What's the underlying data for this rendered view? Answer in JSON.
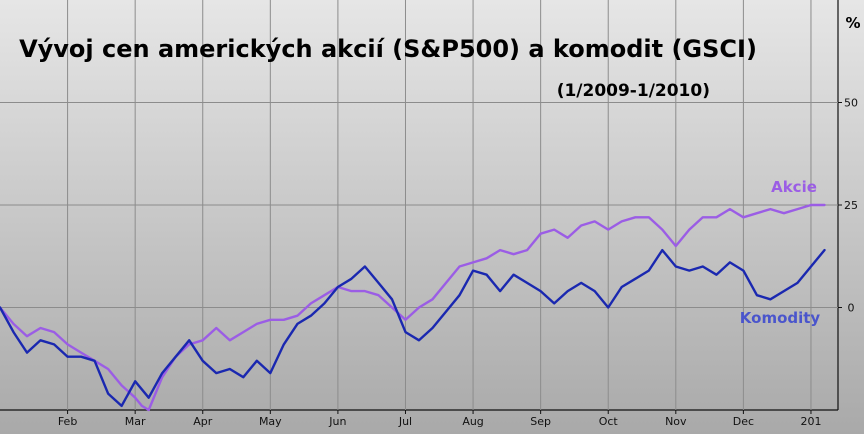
{
  "chart_data": {
    "type": "line",
    "title": "Vývoj cen amerických akcií (S&P500) a komodit (GSCI)",
    "subtitle": "(1/2009-1/2010)",
    "y_unit_label": "%",
    "ylim": [
      -25,
      75
    ],
    "xlim": [
      1,
      13.4
    ],
    "y_ticks": [
      {
        "value": 50,
        "label": "50"
      },
      {
        "value": 25,
        "label": "25"
      },
      {
        "value": 0,
        "label": "0"
      }
    ],
    "x_ticks": [
      {
        "value": 2,
        "label": "Feb"
      },
      {
        "value": 3,
        "label": "Mar"
      },
      {
        "value": 4,
        "label": "Apr"
      },
      {
        "value": 5,
        "label": "May"
      },
      {
        "value": 6,
        "label": "Jun"
      },
      {
        "value": 7,
        "label": "Jul"
      },
      {
        "value": 8,
        "label": "Aug"
      },
      {
        "value": 9,
        "label": "Sep"
      },
      {
        "value": 10,
        "label": "Oct"
      },
      {
        "value": 11,
        "label": "Nov"
      },
      {
        "value": 12,
        "label": "Dec"
      },
      {
        "value": 13,
        "label": "201"
      }
    ],
    "grid": true,
    "series": [
      {
        "name": "Akcie",
        "color": "#9b5de5",
        "points": [
          [
            1.0,
            0
          ],
          [
            1.2,
            -4
          ],
          [
            1.4,
            -7
          ],
          [
            1.6,
            -5
          ],
          [
            1.8,
            -6
          ],
          [
            2.0,
            -9
          ],
          [
            2.2,
            -11
          ],
          [
            2.4,
            -13
          ],
          [
            2.6,
            -15
          ],
          [
            2.8,
            -19
          ],
          [
            3.0,
            -22
          ],
          [
            3.1,
            -24
          ],
          [
            3.2,
            -25
          ],
          [
            3.4,
            -17
          ],
          [
            3.6,
            -12
          ],
          [
            3.8,
            -9
          ],
          [
            4.0,
            -8
          ],
          [
            4.2,
            -5
          ],
          [
            4.4,
            -8
          ],
          [
            4.6,
            -6
          ],
          [
            4.8,
            -4
          ],
          [
            5.0,
            -3
          ],
          [
            5.2,
            -3
          ],
          [
            5.4,
            -2
          ],
          [
            5.6,
            1
          ],
          [
            5.8,
            3
          ],
          [
            6.0,
            5
          ],
          [
            6.2,
            4
          ],
          [
            6.4,
            4
          ],
          [
            6.6,
            3
          ],
          [
            6.8,
            0
          ],
          [
            7.0,
            -3
          ],
          [
            7.2,
            0
          ],
          [
            7.4,
            2
          ],
          [
            7.6,
            6
          ],
          [
            7.8,
            10
          ],
          [
            8.0,
            11
          ],
          [
            8.2,
            12
          ],
          [
            8.4,
            14
          ],
          [
            8.6,
            13
          ],
          [
            8.8,
            14
          ],
          [
            9.0,
            18
          ],
          [
            9.2,
            19
          ],
          [
            9.4,
            17
          ],
          [
            9.6,
            20
          ],
          [
            9.8,
            21
          ],
          [
            10.0,
            19
          ],
          [
            10.2,
            21
          ],
          [
            10.4,
            22
          ],
          [
            10.6,
            22
          ],
          [
            10.8,
            19
          ],
          [
            11.0,
            15
          ],
          [
            11.2,
            19
          ],
          [
            11.4,
            22
          ],
          [
            11.6,
            22
          ],
          [
            11.8,
            24
          ],
          [
            12.0,
            22
          ],
          [
            12.2,
            23
          ],
          [
            12.4,
            24
          ],
          [
            12.6,
            23
          ],
          [
            12.8,
            24
          ],
          [
            13.0,
            25
          ],
          [
            13.2,
            25
          ]
        ]
      },
      {
        "name": "Komodity",
        "color": "#1a28b0",
        "points": [
          [
            1.0,
            0
          ],
          [
            1.2,
            -6
          ],
          [
            1.4,
            -11
          ],
          [
            1.6,
            -8
          ],
          [
            1.8,
            -9
          ],
          [
            2.0,
            -12
          ],
          [
            2.2,
            -12
          ],
          [
            2.4,
            -13
          ],
          [
            2.6,
            -21
          ],
          [
            2.8,
            -24
          ],
          [
            3.0,
            -18
          ],
          [
            3.2,
            -22
          ],
          [
            3.4,
            -16
          ],
          [
            3.6,
            -12
          ],
          [
            3.8,
            -8
          ],
          [
            4.0,
            -13
          ],
          [
            4.2,
            -16
          ],
          [
            4.4,
            -15
          ],
          [
            4.6,
            -17
          ],
          [
            4.8,
            -13
          ],
          [
            5.0,
            -16
          ],
          [
            5.2,
            -9
          ],
          [
            5.4,
            -4
          ],
          [
            5.6,
            -2
          ],
          [
            5.8,
            1
          ],
          [
            6.0,
            5
          ],
          [
            6.2,
            7
          ],
          [
            6.4,
            10
          ],
          [
            6.6,
            6
          ],
          [
            6.8,
            2
          ],
          [
            7.0,
            -6
          ],
          [
            7.2,
            -8
          ],
          [
            7.4,
            -5
          ],
          [
            7.6,
            -1
          ],
          [
            7.8,
            3
          ],
          [
            8.0,
            9
          ],
          [
            8.2,
            8
          ],
          [
            8.4,
            4
          ],
          [
            8.6,
            8
          ],
          [
            8.8,
            6
          ],
          [
            9.0,
            4
          ],
          [
            9.2,
            1
          ],
          [
            9.4,
            4
          ],
          [
            9.6,
            6
          ],
          [
            9.8,
            4
          ],
          [
            10.0,
            0
          ],
          [
            10.2,
            5
          ],
          [
            10.4,
            7
          ],
          [
            10.6,
            9
          ],
          [
            10.8,
            14
          ],
          [
            11.0,
            10
          ],
          [
            11.2,
            9
          ],
          [
            11.4,
            10
          ],
          [
            11.6,
            8
          ],
          [
            11.8,
            11
          ],
          [
            12.0,
            9
          ],
          [
            12.2,
            3
          ],
          [
            12.4,
            2
          ],
          [
            12.6,
            4
          ],
          [
            12.8,
            6
          ],
          [
            13.0,
            10
          ],
          [
            13.2,
            14
          ]
        ]
      }
    ]
  }
}
